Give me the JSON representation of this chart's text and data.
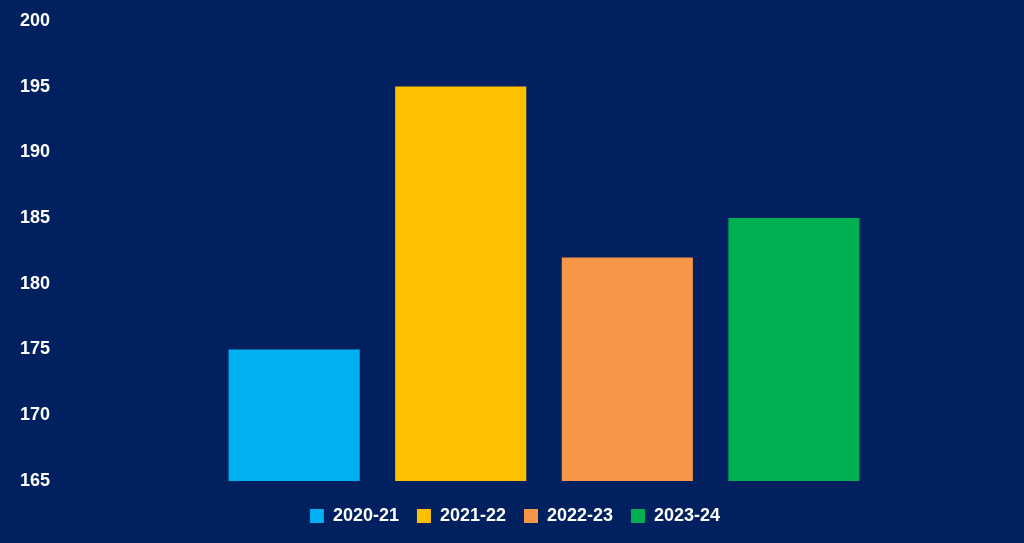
{
  "chart_data": {
    "type": "bar",
    "categories": [
      null
    ],
    "series": [
      {
        "name": "2020-21",
        "color": "#00b0f0",
        "values": [
          175
        ]
      },
      {
        "name": "2021-22",
        "color": "#ffc000",
        "values": [
          195
        ]
      },
      {
        "name": "2022-23",
        "color": "#f79646",
        "values": [
          182
        ]
      },
      {
        "name": "2023-24",
        "color": "#00b050",
        "values": [
          185
        ]
      }
    ],
    "ylim": [
      165,
      200
    ],
    "yticks": [
      165,
      170,
      175,
      180,
      185,
      190,
      195,
      200
    ],
    "grid": false,
    "legend": "bottom"
  }
}
